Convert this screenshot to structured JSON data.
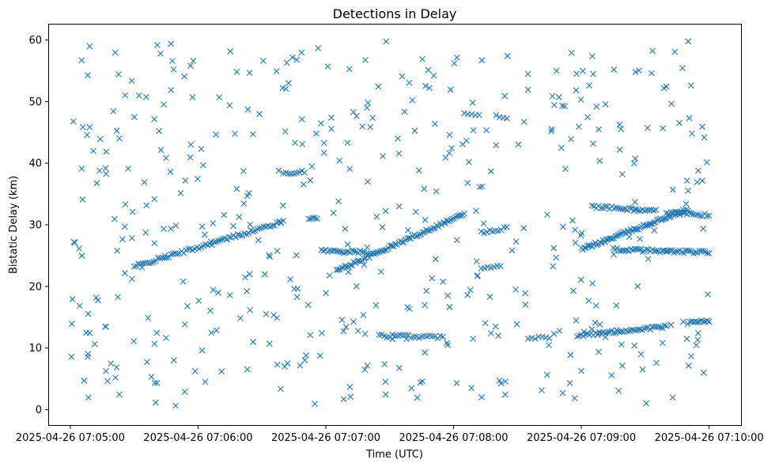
{
  "chart_data": {
    "type": "scatter",
    "title": "Detections in Delay",
    "xlabel": "Time (UTC)",
    "ylabel": "Bistatic Delay (km)",
    "marker": "x",
    "color": "#1f77b4",
    "grid": false,
    "legend": "none",
    "xlim": [
      "2025-04-26 07:04:50",
      "2025-04-26 07:10:15"
    ],
    "ylim": [
      -2.5,
      62.5
    ],
    "x_ticks": [
      "2025-04-26 07:05:00",
      "2025-04-26 07:06:00",
      "2025-04-26 07:07:00",
      "2025-04-26 07:08:00",
      "2025-04-26 07:09:00",
      "2025-04-26 07:10:00"
    ],
    "y_ticks": [
      0,
      10,
      20,
      30,
      40,
      50,
      60
    ],
    "tracks": [
      {
        "from": [
          "2025-04-26 07:05:30",
          23.2
        ],
        "to": [
          "2025-04-26 07:06:40",
          30.5
        ],
        "count": 70
      },
      {
        "from": [
          "2025-04-26 07:06:40",
          38.5
        ],
        "to": [
          "2025-04-26 07:06:50",
          38.5
        ],
        "count": 9
      },
      {
        "from": [
          "2025-04-26 07:06:52",
          31.0
        ],
        "to": [
          "2025-04-26 07:06:56",
          31.2
        ],
        "count": 5
      },
      {
        "from": [
          "2025-04-26 07:06:58",
          25.8
        ],
        "to": [
          "2025-04-26 07:07:20",
          25.5
        ],
        "count": 24
      },
      {
        "from": [
          "2025-04-26 07:07:05",
          22.5
        ],
        "to": [
          "2025-04-26 07:08:05",
          31.8
        ],
        "count": 75
      },
      {
        "from": [
          "2025-04-26 07:07:25",
          12.0
        ],
        "to": [
          "2025-04-26 07:07:55",
          11.8
        ],
        "count": 25
      },
      {
        "from": [
          "2025-04-26 07:08:05",
          48.2
        ],
        "to": [
          "2025-04-26 07:08:12",
          48.0
        ],
        "count": 5
      },
      {
        "from": [
          "2025-04-26 07:08:13",
          28.8
        ],
        "to": [
          "2025-04-26 07:08:25",
          29.5
        ],
        "count": 10
      },
      {
        "from": [
          "2025-04-26 07:08:13",
          23.0
        ],
        "to": [
          "2025-04-26 07:08:22",
          23.2
        ],
        "count": 7
      },
      {
        "from": [
          "2025-04-26 07:08:20",
          47.8
        ],
        "to": [
          "2025-04-26 07:08:25",
          47.5
        ],
        "count": 4
      },
      {
        "from": [
          "2025-04-26 07:08:35",
          11.6
        ],
        "to": [
          "2025-04-26 07:08:45",
          11.8
        ],
        "count": 7
      },
      {
        "from": [
          "2025-04-26 07:08:58",
          12.0
        ],
        "to": [
          "2025-04-26 07:09:40",
          13.5
        ],
        "count": 45
      },
      {
        "from": [
          "2025-04-26 07:09:00",
          26.0
        ],
        "to": [
          "2025-04-26 07:09:50",
          32.5
        ],
        "count": 70
      },
      {
        "from": [
          "2025-04-26 07:09:05",
          33.0
        ],
        "to": [
          "2025-04-26 07:09:35",
          32.2
        ],
        "count": 30
      },
      {
        "from": [
          "2025-04-26 07:09:15",
          26.0
        ],
        "to": [
          "2025-04-26 07:10:00",
          25.5
        ],
        "count": 50
      },
      {
        "from": [
          "2025-04-26 07:09:40",
          32.0
        ],
        "to": [
          "2025-04-26 07:10:00",
          31.5
        ],
        "count": 20
      },
      {
        "from": [
          "2025-04-26 07:09:50",
          14.0
        ],
        "to": [
          "2025-04-26 07:10:00",
          14.5
        ],
        "count": 12
      }
    ],
    "noise": {
      "count": 470,
      "xrange": [
        "2025-04-26 07:05:00",
        "2025-04-26 07:10:00"
      ],
      "yrange": [
        0.5,
        60
      ],
      "seed": 42
    }
  }
}
